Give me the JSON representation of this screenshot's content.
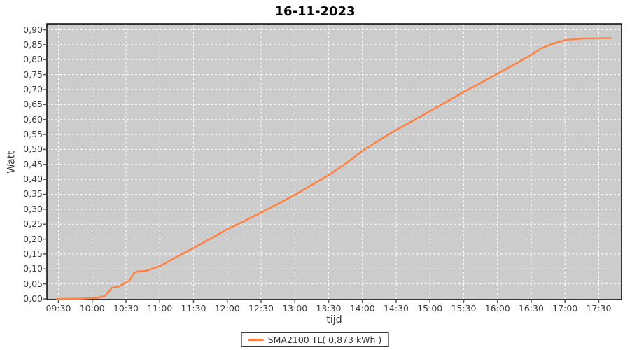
{
  "chart_data": {
    "type": "line",
    "title": "16-11-2023",
    "xlabel": "tijd",
    "ylabel": "Watt",
    "legend_label": "SMA2100 TL( 0,873 kWh )",
    "legend_position": "bottom-center",
    "grid": "white dashed gridlines on gray plot background",
    "colors": {
      "series": "#ff8142",
      "plot_bg": "#cccccc",
      "grid": "#ffffff",
      "plot_border": "#000000",
      "tick_text": "#3d3d3d",
      "tick_mark": "#555555"
    },
    "x_ticks": [
      "09:30",
      "10:00",
      "10:30",
      "11:00",
      "11:30",
      "12:00",
      "12:30",
      "13:00",
      "13:30",
      "14:00",
      "14:30",
      "15:00",
      "15:30",
      "16:00",
      "16:30",
      "17:00",
      "17:30"
    ],
    "y_ticks": [
      "0,00",
      "0,05",
      "0,10",
      "0,15",
      "0,20",
      "0,25",
      "0,30",
      "0,35",
      "0,40",
      "0,45",
      "0,50",
      "0,55",
      "0,60",
      "0,65",
      "0,70",
      "0,75",
      "0,80",
      "0,85",
      "0,90"
    ],
    "xlim_hours": [
      9.329,
      17.837
    ],
    "ylim": [
      0,
      0.92
    ],
    "series": [
      {
        "name": "SMA2100 TL( 0,873 kWh )",
        "color": "#ff8142",
        "points_hours_value": [
          [
            9.48,
            0.0
          ],
          [
            9.75,
            0.0
          ],
          [
            10.0,
            0.002
          ],
          [
            10.09,
            0.004
          ],
          [
            10.19,
            0.01
          ],
          [
            10.24,
            0.022
          ],
          [
            10.29,
            0.037
          ],
          [
            10.4,
            0.042
          ],
          [
            10.5,
            0.055
          ],
          [
            10.55,
            0.06
          ],
          [
            10.62,
            0.086
          ],
          [
            10.66,
            0.091
          ],
          [
            10.81,
            0.094
          ],
          [
            10.9,
            0.102
          ],
          [
            11.0,
            0.109
          ],
          [
            11.25,
            0.14
          ],
          [
            11.5,
            0.17
          ],
          [
            11.75,
            0.201
          ],
          [
            12.0,
            0.233
          ],
          [
            12.25,
            0.26
          ],
          [
            12.5,
            0.289
          ],
          [
            12.75,
            0.318
          ],
          [
            13.0,
            0.348
          ],
          [
            13.25,
            0.381
          ],
          [
            13.5,
            0.414
          ],
          [
            13.75,
            0.452
          ],
          [
            14.0,
            0.495
          ],
          [
            14.25,
            0.531
          ],
          [
            14.5,
            0.565
          ],
          [
            14.75,
            0.596
          ],
          [
            15.0,
            0.628
          ],
          [
            15.25,
            0.66
          ],
          [
            15.5,
            0.692
          ],
          [
            15.75,
            0.722
          ],
          [
            16.0,
            0.753
          ],
          [
            16.25,
            0.784
          ],
          [
            16.5,
            0.816
          ],
          [
            16.65,
            0.838
          ],
          [
            16.8,
            0.852
          ],
          [
            17.0,
            0.865
          ],
          [
            17.15,
            0.869
          ],
          [
            17.3,
            0.871
          ],
          [
            17.45,
            0.871
          ],
          [
            17.55,
            0.872
          ],
          [
            17.68,
            0.872
          ]
        ]
      }
    ]
  }
}
